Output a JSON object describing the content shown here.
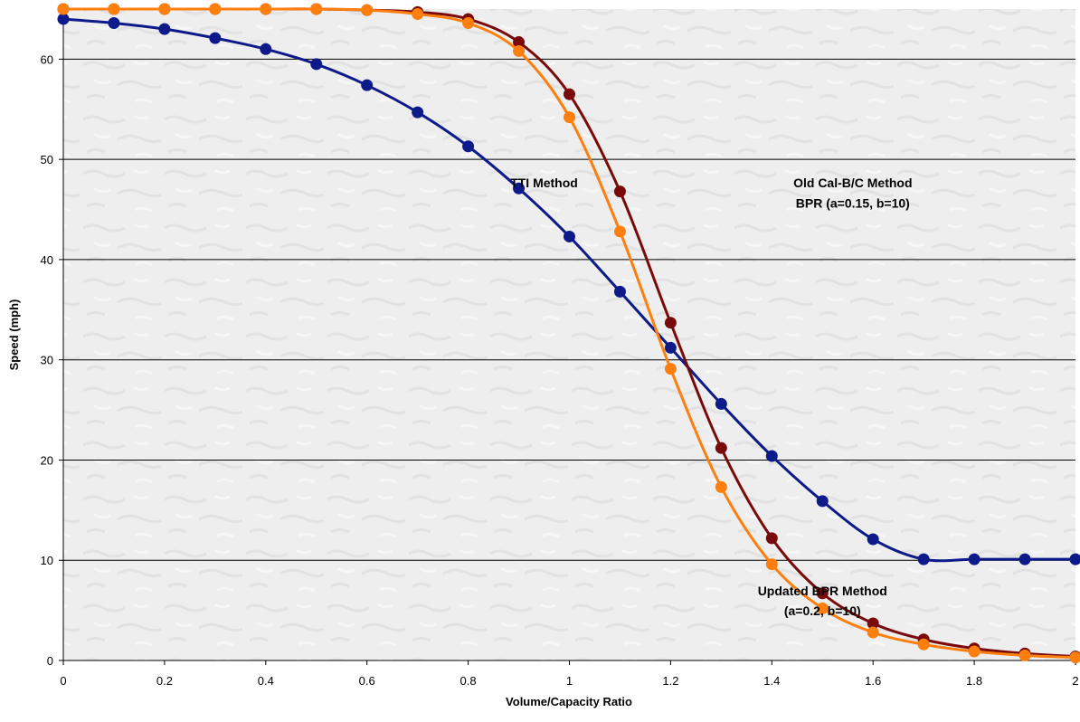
{
  "chart_data": {
    "type": "line",
    "xlabel": "Volume/Capacity Ratio",
    "ylabel": "Speed (mph)",
    "xlim": [
      0,
      2
    ],
    "ylim": [
      0,
      65
    ],
    "xticks": [
      0,
      0.2,
      0.4,
      0.6,
      0.8,
      1,
      1.2,
      1.4,
      1.6,
      1.8,
      2
    ],
    "xtick_labels": [
      "0",
      "0.2",
      "0.4",
      "0.6",
      "0.8",
      "1",
      "1.2",
      "1.4",
      "1.6",
      "1.8",
      "2"
    ],
    "yticks": [
      0,
      10,
      20,
      30,
      40,
      50,
      60
    ],
    "ytick_labels": [
      "0",
      "10",
      "20",
      "30",
      "40",
      "50",
      "60"
    ],
    "grid": "horizontal",
    "legend": "none",
    "x": [
      0,
      0.1,
      0.2,
      0.3,
      0.4,
      0.5,
      0.6,
      0.7,
      0.8,
      0.9,
      1.0,
      1.1,
      1.2,
      1.3,
      1.4,
      1.5,
      1.6,
      1.7,
      1.8,
      1.9,
      2.0
    ],
    "series": [
      {
        "color": "#0d1a8a",
        "values": [
          64.0,
          63.6,
          63.0,
          62.1,
          61.0,
          59.5,
          57.4,
          54.7,
          51.3,
          47.1,
          42.3,
          36.8,
          31.2,
          25.6,
          20.4,
          15.9,
          12.1,
          10.1,
          10.1,
          10.1,
          10.1
        ]
      },
      {
        "color": "#7a0a0a",
        "values": [
          65.0,
          65.0,
          65.0,
          65.0,
          65.0,
          65.0,
          64.9,
          64.7,
          64.0,
          61.7,
          56.5,
          46.8,
          33.7,
          21.2,
          12.2,
          6.7,
          3.7,
          2.1,
          1.2,
          0.7,
          0.4
        ]
      },
      {
        "color": "#ff7f0e",
        "values": [
          65.0,
          65.0,
          65.0,
          65.0,
          65.0,
          65.0,
          64.9,
          64.5,
          63.6,
          60.8,
          54.2,
          42.8,
          29.1,
          17.3,
          9.6,
          5.2,
          2.8,
          1.6,
          0.9,
          0.5,
          0.3
        ]
      }
    ],
    "annotations": [
      {
        "text": "TTI Method",
        "x": 0.95,
        "y": 47.2
      },
      {
        "text": "Old Cal-B/C Method",
        "x": 1.56,
        "y": 47.2
      },
      {
        "text": "BPR (a=0.15, b=10)",
        "x": 1.56,
        "y": 45.2
      },
      {
        "text": "Updated BPR Method",
        "x": 1.5,
        "y": 6.5
      },
      {
        "text": "(a=0.2, b=10)",
        "x": 1.5,
        "y": 4.5
      }
    ],
    "colors": {
      "plot_background": "#eeeeee",
      "gridline": "#000000"
    }
  }
}
